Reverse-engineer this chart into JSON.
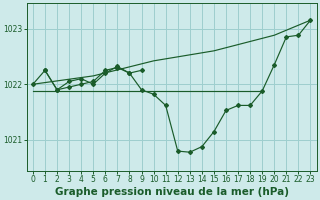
{
  "background_color": "#ceeaea",
  "grid_color": "#9ecece",
  "line_color": "#1a5c2a",
  "xlabel": "Graphe pression niveau de la mer (hPa)",
  "xlabel_fontsize": 7.5,
  "xlim": [
    -0.5,
    23.5
  ],
  "ylim": [
    1020.45,
    1023.45
  ],
  "yticks": [
    1021,
    1022,
    1023
  ],
  "xticks": [
    0,
    1,
    2,
    3,
    4,
    5,
    6,
    7,
    8,
    9,
    10,
    11,
    12,
    13,
    14,
    15,
    16,
    17,
    18,
    19,
    20,
    21,
    22,
    23
  ],
  "series_main_x": [
    0,
    1,
    2,
    3,
    4,
    5,
    6,
    7,
    8,
    9,
    10,
    11,
    12,
    13,
    14,
    15,
    16,
    17,
    18,
    19,
    20,
    21,
    22,
    23
  ],
  "series_main_y": [
    1022.0,
    1022.25,
    1021.9,
    1021.95,
    1022.0,
    1022.05,
    1022.25,
    1022.3,
    1022.2,
    1021.9,
    1021.82,
    1021.62,
    1020.8,
    1020.78,
    1020.88,
    1021.15,
    1021.53,
    1021.62,
    1021.62,
    1021.88,
    1022.35,
    1022.85,
    1022.88,
    1023.15
  ],
  "series_flat_x": [
    0,
    1,
    2,
    3,
    4,
    5,
    6,
    7,
    8,
    9,
    10,
    11,
    12,
    13,
    14,
    15,
    16,
    17,
    18,
    19
  ],
  "series_flat_y": [
    1021.88,
    1021.88,
    1021.88,
    1021.88,
    1021.88,
    1021.88,
    1021.88,
    1021.88,
    1021.88,
    1021.88,
    1021.88,
    1021.88,
    1021.88,
    1021.88,
    1021.88,
    1021.88,
    1021.88,
    1021.88,
    1021.88,
    1021.88
  ],
  "series_upper_x": [
    0,
    5,
    10,
    15,
    20,
    23
  ],
  "series_upper_y": [
    1022.0,
    1022.15,
    1022.42,
    1022.6,
    1022.88,
    1023.15
  ],
  "series_short_x": [
    1,
    2,
    3,
    4,
    5,
    6,
    7,
    8,
    9
  ],
  "series_short_y": [
    1022.25,
    1021.9,
    1022.05,
    1022.1,
    1022.0,
    1022.2,
    1022.32,
    1022.2,
    1022.25
  ]
}
